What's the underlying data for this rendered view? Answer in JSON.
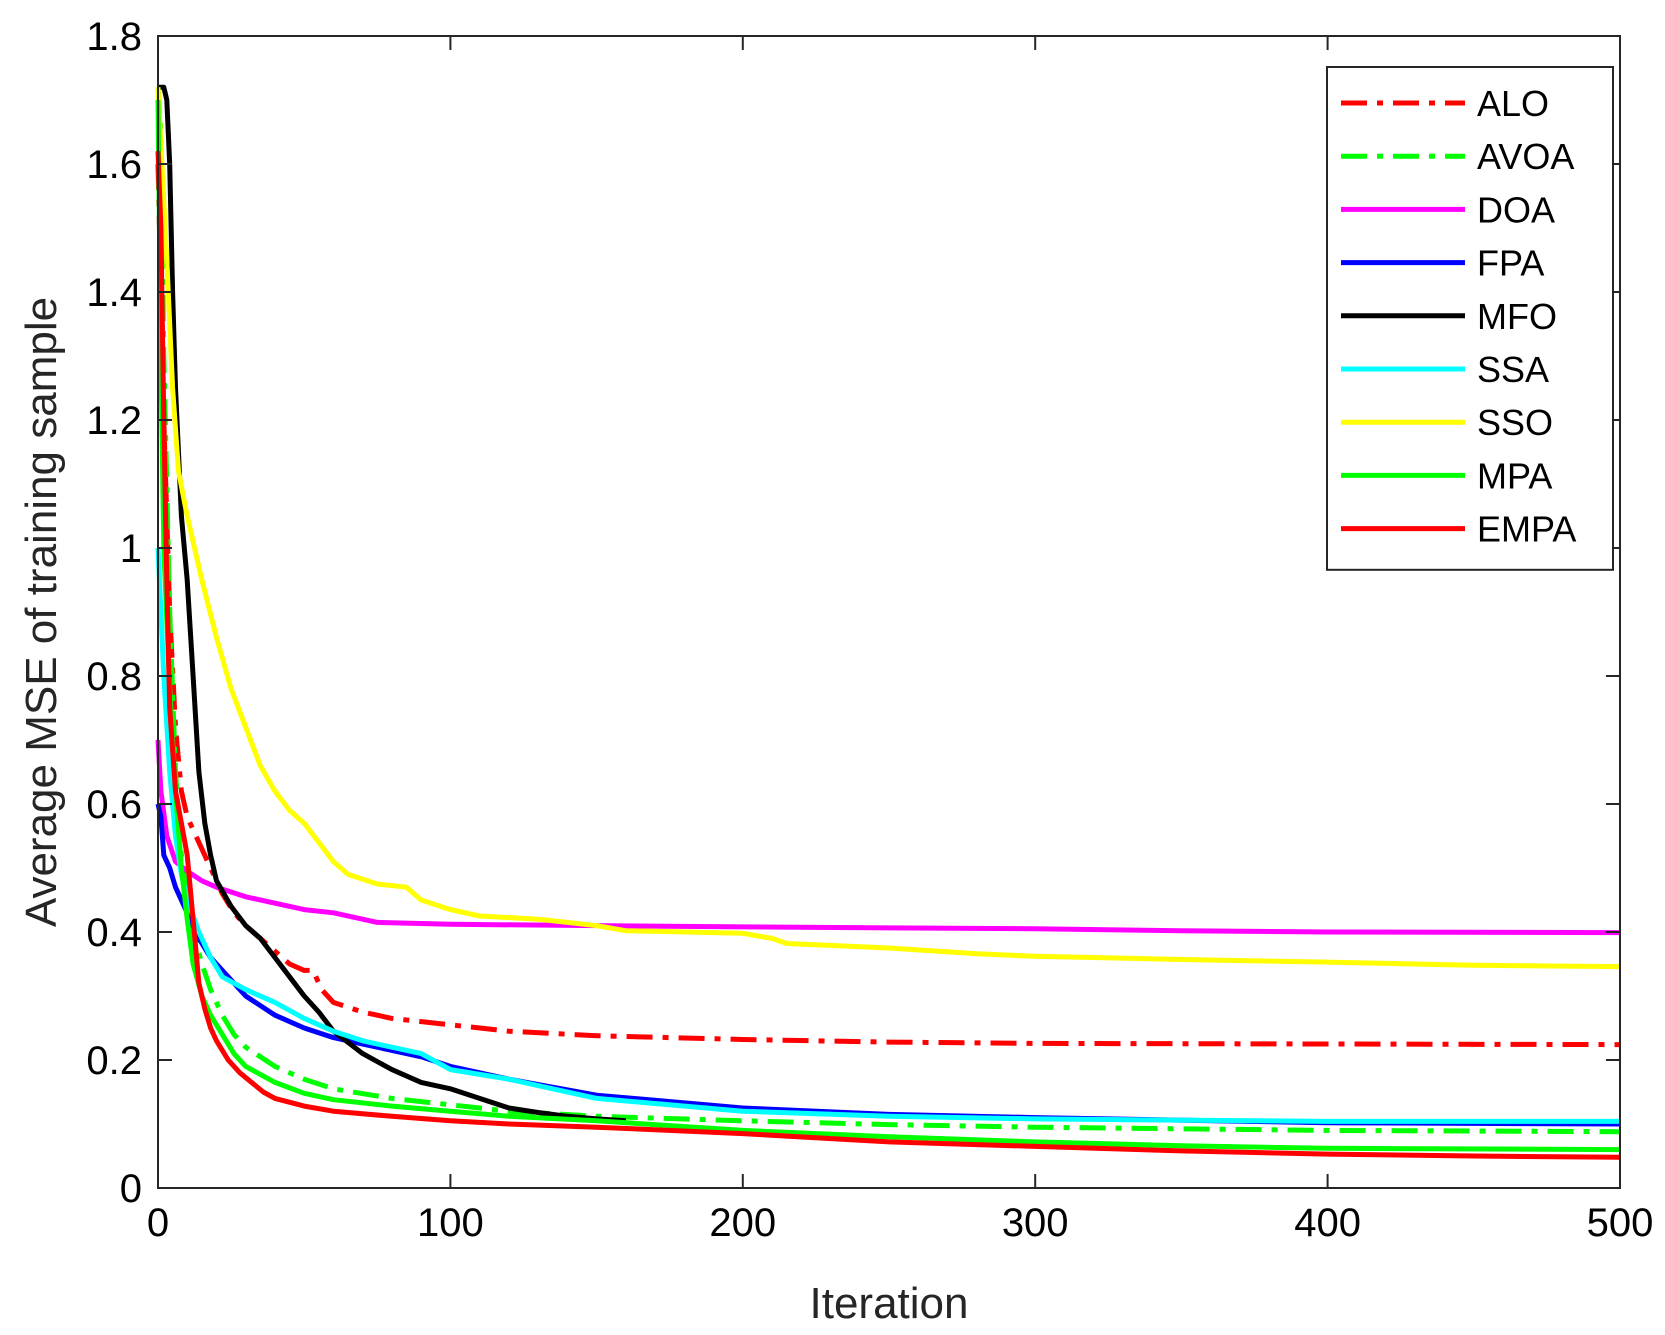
{
  "chart_data": {
    "type": "line",
    "title": "",
    "xlabel": "Iteration",
    "ylabel": "Average MSE of training sample",
    "xlim": [
      0,
      500
    ],
    "ylim": [
      0,
      1.8
    ],
    "xticks": [
      0,
      100,
      200,
      300,
      400,
      500
    ],
    "yticks": [
      0,
      0.2,
      0.4,
      0.6,
      0.8,
      1,
      1.2,
      1.4,
      1.6,
      1.8
    ],
    "grid": false,
    "legend_position": "top-right",
    "series": [
      {
        "name": "ALO",
        "color": "#ff0000",
        "style": "dashdot",
        "points": [
          [
            0,
            1.6
          ],
          [
            2,
            1.2
          ],
          [
            4,
            0.9
          ],
          [
            6,
            0.72
          ],
          [
            8,
            0.62
          ],
          [
            10,
            0.58
          ],
          [
            14,
            0.54
          ],
          [
            18,
            0.5
          ],
          [
            22,
            0.46
          ],
          [
            26,
            0.43
          ],
          [
            30,
            0.41
          ],
          [
            35,
            0.39
          ],
          [
            40,
            0.37
          ],
          [
            45,
            0.35
          ],
          [
            50,
            0.34
          ],
          [
            53,
            0.34
          ],
          [
            56,
            0.31
          ],
          [
            60,
            0.29
          ],
          [
            70,
            0.275
          ],
          [
            80,
            0.265
          ],
          [
            100,
            0.255
          ],
          [
            120,
            0.245
          ],
          [
            150,
            0.238
          ],
          [
            200,
            0.232
          ],
          [
            250,
            0.228
          ],
          [
            300,
            0.226
          ],
          [
            400,
            0.225
          ],
          [
            500,
            0.224
          ]
        ]
      },
      {
        "name": "AVOA",
        "color": "#00ff00",
        "style": "dashdot",
        "points": [
          [
            0,
            1.72
          ],
          [
            1,
            1.65
          ],
          [
            2,
            1.3
          ],
          [
            4,
            0.9
          ],
          [
            6,
            0.65
          ],
          [
            8,
            0.52
          ],
          [
            10,
            0.45
          ],
          [
            12,
            0.4
          ],
          [
            15,
            0.35
          ],
          [
            18,
            0.31
          ],
          [
            22,
            0.27
          ],
          [
            26,
            0.24
          ],
          [
            30,
            0.22
          ],
          [
            40,
            0.19
          ],
          [
            50,
            0.17
          ],
          [
            60,
            0.155
          ],
          [
            80,
            0.14
          ],
          [
            100,
            0.13
          ],
          [
            120,
            0.12
          ],
          [
            150,
            0.112
          ],
          [
            200,
            0.105
          ],
          [
            250,
            0.099
          ],
          [
            300,
            0.095
          ],
          [
            400,
            0.09
          ],
          [
            500,
            0.088
          ]
        ]
      },
      {
        "name": "DOA",
        "color": "#ff00ff",
        "style": "solid",
        "points": [
          [
            0,
            0.7
          ],
          [
            1,
            0.62
          ],
          [
            3,
            0.55
          ],
          [
            6,
            0.51
          ],
          [
            10,
            0.495
          ],
          [
            15,
            0.48
          ],
          [
            20,
            0.47
          ],
          [
            30,
            0.455
          ],
          [
            40,
            0.445
          ],
          [
            50,
            0.435
          ],
          [
            60,
            0.43
          ],
          [
            70,
            0.42
          ],
          [
            75,
            0.415
          ],
          [
            100,
            0.412
          ],
          [
            150,
            0.41
          ],
          [
            200,
            0.408
          ],
          [
            300,
            0.405
          ],
          [
            350,
            0.402
          ],
          [
            400,
            0.4
          ],
          [
            500,
            0.399
          ]
        ]
      },
      {
        "name": "FPA",
        "color": "#0000ff",
        "style": "solid",
        "points": [
          [
            0,
            0.6
          ],
          [
            1,
            0.58
          ],
          [
            2,
            0.52
          ],
          [
            4,
            0.5
          ],
          [
            6,
            0.47
          ],
          [
            10,
            0.43
          ],
          [
            14,
            0.39
          ],
          [
            18,
            0.36
          ],
          [
            22,
            0.34
          ],
          [
            26,
            0.32
          ],
          [
            30,
            0.3
          ],
          [
            40,
            0.27
          ],
          [
            50,
            0.25
          ],
          [
            60,
            0.235
          ],
          [
            70,
            0.225
          ],
          [
            80,
            0.215
          ],
          [
            90,
            0.205
          ],
          [
            100,
            0.19
          ],
          [
            120,
            0.17
          ],
          [
            150,
            0.145
          ],
          [
            200,
            0.125
          ],
          [
            250,
            0.115
          ],
          [
            300,
            0.11
          ],
          [
            400,
            0.102
          ],
          [
            500,
            0.1
          ]
        ]
      },
      {
        "name": "MFO",
        "color": "#000000",
        "style": "solid",
        "points": [
          [
            0,
            1.72
          ],
          [
            2,
            1.72
          ],
          [
            3,
            1.7
          ],
          [
            4,
            1.6
          ],
          [
            5,
            1.4
          ],
          [
            6,
            1.25
          ],
          [
            8,
            1.05
          ],
          [
            10,
            0.95
          ],
          [
            12,
            0.8
          ],
          [
            14,
            0.65
          ],
          [
            16,
            0.57
          ],
          [
            18,
            0.52
          ],
          [
            20,
            0.48
          ],
          [
            25,
            0.44
          ],
          [
            30,
            0.41
          ],
          [
            35,
            0.39
          ],
          [
            40,
            0.36
          ],
          [
            45,
            0.33
          ],
          [
            50,
            0.3
          ],
          [
            55,
            0.275
          ],
          [
            60,
            0.245
          ],
          [
            70,
            0.21
          ],
          [
            80,
            0.185
          ],
          [
            90,
            0.165
          ],
          [
            100,
            0.155
          ],
          [
            110,
            0.14
          ],
          [
            120,
            0.125
          ],
          [
            130,
            0.118
          ],
          [
            140,
            0.112
          ],
          [
            150,
            0.108
          ],
          [
            160,
            0.105
          ]
        ]
      },
      {
        "name": "SSA",
        "color": "#00ffff",
        "style": "solid",
        "points": [
          [
            0,
            1.0
          ],
          [
            1,
            0.9
          ],
          [
            2,
            0.8
          ],
          [
            4,
            0.65
          ],
          [
            6,
            0.55
          ],
          [
            8,
            0.49
          ],
          [
            10,
            0.45
          ],
          [
            14,
            0.4
          ],
          [
            18,
            0.36
          ],
          [
            22,
            0.33
          ],
          [
            30,
            0.31
          ],
          [
            40,
            0.29
          ],
          [
            50,
            0.265
          ],
          [
            60,
            0.245
          ],
          [
            70,
            0.23
          ],
          [
            80,
            0.22
          ],
          [
            90,
            0.21
          ],
          [
            100,
            0.185
          ],
          [
            120,
            0.17
          ],
          [
            150,
            0.14
          ],
          [
            200,
            0.12
          ],
          [
            250,
            0.112
          ],
          [
            300,
            0.108
          ],
          [
            400,
            0.104
          ],
          [
            500,
            0.104
          ]
        ]
      },
      {
        "name": "SSO",
        "color": "#ffff00",
        "style": "solid",
        "points": [
          [
            0,
            1.72
          ],
          [
            3,
            1.45
          ],
          [
            5,
            1.25
          ],
          [
            7,
            1.12
          ],
          [
            10,
            1.05
          ],
          [
            15,
            0.95
          ],
          [
            20,
            0.86
          ],
          [
            25,
            0.78
          ],
          [
            30,
            0.72
          ],
          [
            35,
            0.66
          ],
          [
            40,
            0.62
          ],
          [
            45,
            0.59
          ],
          [
            50,
            0.57
          ],
          [
            55,
            0.54
          ],
          [
            60,
            0.51
          ],
          [
            65,
            0.49
          ],
          [
            75,
            0.475
          ],
          [
            85,
            0.47
          ],
          [
            90,
            0.45
          ],
          [
            100,
            0.435
          ],
          [
            110,
            0.425
          ],
          [
            130,
            0.42
          ],
          [
            140,
            0.415
          ],
          [
            150,
            0.41
          ],
          [
            160,
            0.402
          ],
          [
            200,
            0.398
          ],
          [
            210,
            0.39
          ],
          [
            215,
            0.382
          ],
          [
            250,
            0.375
          ],
          [
            280,
            0.366
          ],
          [
            300,
            0.362
          ],
          [
            350,
            0.357
          ],
          [
            400,
            0.353
          ],
          [
            450,
            0.348
          ],
          [
            500,
            0.346
          ]
        ]
      },
      {
        "name": "MPA",
        "color": "#00ff00",
        "style": "solid",
        "points": [
          [
            0,
            1.7
          ],
          [
            1,
            1.3
          ],
          [
            2,
            1.0
          ],
          [
            4,
            0.78
          ],
          [
            6,
            0.62
          ],
          [
            8,
            0.5
          ],
          [
            10,
            0.42
          ],
          [
            12,
            0.35
          ],
          [
            15,
            0.3
          ],
          [
            18,
            0.27
          ],
          [
            22,
            0.24
          ],
          [
            26,
            0.21
          ],
          [
            30,
            0.19
          ],
          [
            40,
            0.165
          ],
          [
            50,
            0.148
          ],
          [
            60,
            0.138
          ],
          [
            80,
            0.128
          ],
          [
            100,
            0.12
          ],
          [
            120,
            0.112
          ],
          [
            150,
            0.105
          ],
          [
            200,
            0.09
          ],
          [
            250,
            0.08
          ],
          [
            300,
            0.072
          ],
          [
            350,
            0.066
          ],
          [
            400,
            0.062
          ],
          [
            500,
            0.06
          ]
        ]
      },
      {
        "name": "EMPA",
        "color": "#ff0000",
        "style": "solid",
        "points": [
          [
            0,
            1.62
          ],
          [
            1,
            1.5
          ],
          [
            2,
            1.2
          ],
          [
            3,
            0.95
          ],
          [
            4,
            0.75
          ],
          [
            6,
            0.62
          ],
          [
            8,
            0.57
          ],
          [
            10,
            0.52
          ],
          [
            12,
            0.42
          ],
          [
            14,
            0.32
          ],
          [
            16,
            0.28
          ],
          [
            18,
            0.25
          ],
          [
            20,
            0.23
          ],
          [
            24,
            0.2
          ],
          [
            28,
            0.18
          ],
          [
            32,
            0.165
          ],
          [
            36,
            0.15
          ],
          [
            40,
            0.14
          ],
          [
            50,
            0.128
          ],
          [
            60,
            0.12
          ],
          [
            80,
            0.112
          ],
          [
            100,
            0.105
          ],
          [
            120,
            0.1
          ],
          [
            150,
            0.095
          ],
          [
            200,
            0.085
          ],
          [
            250,
            0.072
          ],
          [
            300,
            0.065
          ],
          [
            350,
            0.058
          ],
          [
            400,
            0.053
          ],
          [
            450,
            0.05
          ],
          [
            500,
            0.048
          ]
        ]
      }
    ]
  }
}
